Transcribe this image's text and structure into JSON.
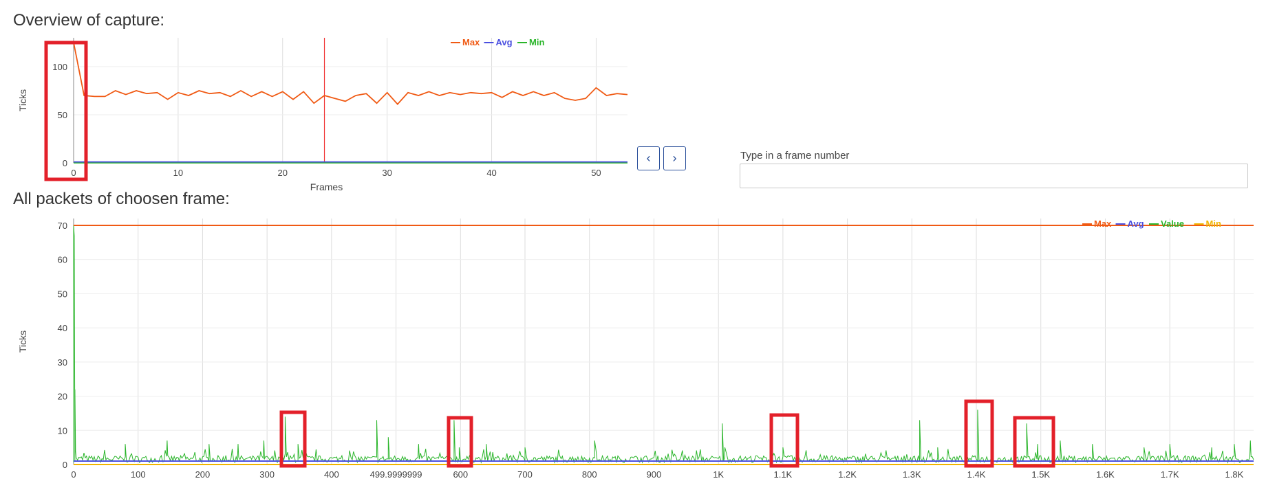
{
  "overview": {
    "title": "Overview of capture:",
    "chart_data": {
      "type": "line",
      "xlabel": "Frames",
      "ylabel": "Ticks",
      "xlim": [
        0,
        53
      ],
      "ylim": [
        0,
        130
      ],
      "x_ticks": [
        "0",
        "10",
        "20",
        "30",
        "40",
        "50"
      ],
      "y_ticks": [
        "0",
        "50",
        "100"
      ],
      "legend": "top-center",
      "grid": true,
      "selected_frame": 24,
      "series": [
        {
          "name": "Max",
          "color": "#f05a14",
          "values": [
            125,
            70,
            69,
            69,
            75,
            71,
            75,
            72,
            73,
            66,
            73,
            70,
            75,
            72,
            73,
            69,
            75,
            69,
            74,
            69,
            74,
            66,
            74,
            62,
            70,
            67,
            64,
            70,
            72,
            62,
            73,
            61,
            73,
            70,
            74,
            70,
            73,
            71,
            73,
            72,
            73,
            68,
            74,
            70,
            74,
            70,
            73,
            67,
            65,
            67,
            78,
            70,
            72,
            71
          ]
        },
        {
          "name": "Avg",
          "color": "#4a4fe0",
          "values": [
            1,
            1,
            1,
            1,
            1,
            1,
            1,
            1,
            1,
            1,
            1,
            1,
            1,
            1,
            1,
            1,
            1,
            1,
            1,
            1,
            1,
            1,
            1,
            1,
            1,
            1,
            1,
            1,
            1,
            1,
            1,
            1,
            1,
            1,
            1,
            1,
            1,
            1,
            1,
            1,
            1,
            1,
            1,
            1,
            1,
            1,
            1,
            1,
            1,
            1,
            1,
            1,
            1,
            1
          ]
        },
        {
          "name": "Min",
          "color": "#2ab52a",
          "values": [
            0,
            0,
            0,
            0,
            0,
            0,
            0,
            0,
            0,
            0,
            0,
            0,
            0,
            0,
            0,
            0,
            0,
            0,
            0,
            0,
            0,
            0,
            0,
            0,
            0,
            0,
            0,
            0,
            0,
            0,
            0,
            0,
            0,
            0,
            0,
            0,
            0,
            0,
            0,
            0,
            0,
            0,
            0,
            0,
            0,
            0,
            0,
            0,
            0,
            0,
            0,
            0,
            0,
            0
          ]
        }
      ]
    }
  },
  "controls": {
    "prev_icon": "chevron-left-icon",
    "prev_glyph": "‹",
    "next_icon": "chevron-right-icon",
    "next_glyph": "›",
    "frame_input_label": "Type in a frame number",
    "frame_input_value": ""
  },
  "packets": {
    "title": "All packets of choosen frame:",
    "chart_data": {
      "type": "line",
      "ylabel": "Ticks",
      "xlim": [
        0,
        1830
      ],
      "ylim": [
        0,
        72
      ],
      "x_ticks": [
        "0",
        "100",
        "200",
        "300",
        "400",
        "499.9999999",
        "600",
        "700",
        "800",
        "900",
        "1K",
        "1.1K",
        "1.2K",
        "1.3K",
        "1.4K",
        "1.5K",
        "1.6K",
        "1.7K",
        "1.8K"
      ],
      "y_ticks": [
        "0",
        "10",
        "20",
        "30",
        "40",
        "50",
        "60",
        "70"
      ],
      "legend": "top-right",
      "grid": true,
      "series": [
        {
          "name": "Max",
          "color": "#f05a14",
          "constant": 70
        },
        {
          "name": "Avg",
          "color": "#4a4fe0",
          "constant": 1
        },
        {
          "name": "Value",
          "color": "#2ab52a",
          "peaks": [
            [
              0,
              70
            ],
            [
              1,
              67
            ],
            [
              2,
              22
            ],
            [
              3,
              4
            ],
            [
              80,
              6
            ],
            [
              145,
              7
            ],
            [
              210,
              6
            ],
            [
              255,
              6
            ],
            [
              295,
              7
            ],
            [
              328,
              14
            ],
            [
              348,
              6
            ],
            [
              470,
              13
            ],
            [
              488,
              8
            ],
            [
              535,
              6
            ],
            [
              590,
              13
            ],
            [
              598,
              5
            ],
            [
              640,
              6
            ],
            [
              700,
              5
            ],
            [
              808,
              7
            ],
            [
              1006,
              12
            ],
            [
              1010,
              5
            ],
            [
              1100,
              5
            ],
            [
              1312,
              13
            ],
            [
              1340,
              5
            ],
            [
              1385,
              5
            ],
            [
              1402,
              16
            ],
            [
              1425,
              5
            ],
            [
              1460,
              12
            ],
            [
              1478,
              12
            ],
            [
              1495,
              6
            ],
            [
              1530,
              7
            ],
            [
              1580,
              6
            ],
            [
              1660,
              5
            ],
            [
              1700,
              6
            ],
            [
              1765,
              5
            ],
            [
              1800,
              6
            ],
            [
              1825,
              7
            ]
          ]
        },
        {
          "name": "Min",
          "color": "#f0b400",
          "constant": 0
        }
      ]
    }
  },
  "highlight_color": "#e3202a"
}
